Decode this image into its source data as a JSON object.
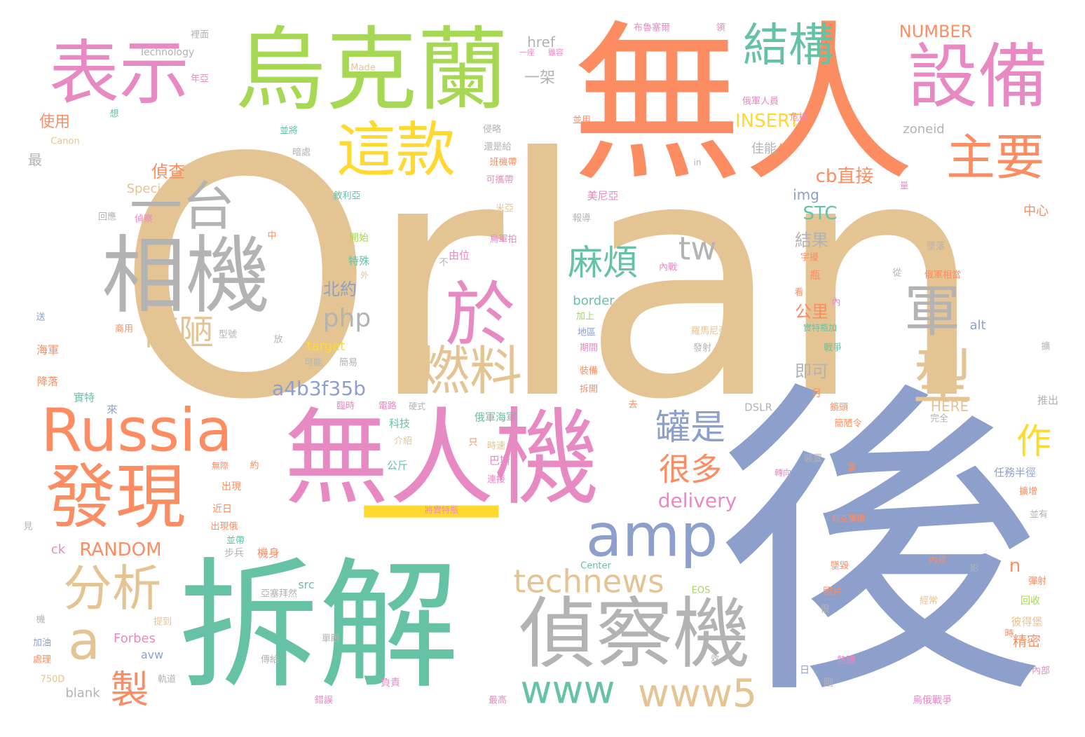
{
  "palette": {
    "tan": "#e5c494",
    "orange": "#fc8d62",
    "blue": "#8da0cb",
    "pink": "#e78ac3",
    "green": "#a6d854",
    "yellow": "#ffd92f",
    "teal": "#66c2a5",
    "grey": "#b3b3b3"
  },
  "words": {
    "w01": "Orlan",
    "w02": "無人",
    "w03": "後",
    "w04": "無人機",
    "w05": "拆解",
    "w06": "烏克蘭",
    "w07": "一",
    "w08": "相機",
    "w09": "偵察機",
    "w10": "設備",
    "w11": "表示",
    "w12": "這款",
    "w13": "發現",
    "w14": "Russia",
    "w15": "一台",
    "w16": "於",
    "w17": "amp",
    "w18": "結構",
    "w19": "主要",
    "w20": "軍",
    "w21": "型",
    "w22": "燃料",
    "w23": "分析",
    "w24": "technews",
    "w25": "www5",
    "w26": "www",
    "w27": "a",
    "w28": "簡陋",
    "w29": "麻煩",
    "w30": "罐是",
    "w31": "很多",
    "w32": "製",
    "w33": "作",
    "w34": "tw",
    "w35": "php",
    "w36": "a4b3f35b",
    "w37": "delivery",
    "w38": "RANDOM",
    "w39": "INSERT",
    "w40": "NUMBER",
    "w41": "cb直接",
    "w42": "STC",
    "w43": "結果",
    "w44": "公里",
    "w45": "即可",
    "w46": "北約",
    "w47": "偵查",
    "w48": "使用",
    "w49": "一架",
    "w50": "href",
    "w51": "zoneid",
    "w52": "佳能",
    "w53": "img",
    "w54": "Special",
    "w55": "Technology",
    "w56": "Canon",
    "w57": "Made",
    "w58": "border",
    "w59": "alt",
    "w60": "target",
    "w61": "Forbes",
    "w62": "blank",
    "w63": "avw",
    "w64": "DSLR",
    "w65": "HERE",
    "w66": "Center",
    "w67": "EOS",
    "w68": "750D",
    "w69": "src",
    "w70": "ck",
    "w71": "n",
    "w72": "年",
    "w73": "精密",
    "w74": "中心",
    "w75": "最",
    "w76": "海軍",
    "w77": "降落",
    "w78": "實特",
    "w79": "科技",
    "w80": "俄軍海軍",
    "w81": "公斤",
    "w82": "巴斯",
    "w83": "美尼亞",
    "w84": "俄軍人員",
    "w85": "危機",
    "w86": "布魯塞爾",
    "w87": "領",
    "w88": "任務半徑",
    "w89": "推出",
    "w90": "烏軍拍",
    "w91": "由位",
    "w92": "開始",
    "w93": "特殊",
    "w94": "來",
    "w95": "出現",
    "w96": "近日",
    "w97": "步兵",
    "w98": "機身",
    "w99": "內建",
    "w100": "照片",
    "w101": "彼得堡",
    "w102": "回收",
    "w103": "烏俄戰爭",
    "w104": "內部",
    "w105": "熱頭",
    "w106": "負責",
    "w107": "最高",
    "w108": "傳給",
    "w109": "軌道",
    "w110": "加油",
    "w111": "處理",
    "w112": "日",
    "w113": "剛",
    "w114": "彈射",
    "w115": "經常",
    "w116": "月",
    "w117": "瓶",
    "w118": "看",
    "w119": "內",
    "w120": "發射",
    "w121": "戰爭",
    "w122": "期間",
    "w123": "裝備",
    "w124": "拆開",
    "w125": "地區",
    "w126": "加上",
    "w127": "放",
    "w128": "可能",
    "w129": "簡易",
    "w130": "商用",
    "w131": "偵察",
    "w132": "回應",
    "w133": "敘利亞",
    "w134": "可攜帶",
    "w135": "報導",
    "w136": "還是給",
    "w137": "侵略",
    "w138": "並將",
    "w139": "並用",
    "w140": "想",
    "w141": "年亞",
    "w142": "裡面",
    "w143": "一座",
    "w144": "雖容",
    "w145": "俄軍相當",
    "w146": "宇擾",
    "w147": "墜落",
    "w148": "從",
    "w149": "羅馬尼亞",
    "w150": "內戰",
    "w151": "實特瓶加",
    "w152": "鏡頭",
    "w153": "簡陋令",
    "w154": "完全",
    "w155": "裝置",
    "w156": "轉向",
    "w157": "拿",
    "w158": "擴增",
    "w159": "並有",
    "w160": "影",
    "w161": "烏克蘭現",
    "w162": "將實特瓶",
    "w163": "時速",
    "w164": "連接",
    "w165": "只",
    "w166": "介紹",
    "w167": "電路",
    "w168": "硬式",
    "w169": "約",
    "w170": "無際",
    "w171": "見",
    "w172": "機",
    "w173": "出現俄",
    "w174": "亞塞拜然",
    "w175": "單眼",
    "w176": "提到",
    "w177": "墜毀",
    "w178": "很",
    "w179": "時",
    "w180": "效",
    "w181": "送",
    "w182": "外",
    "w183": "不",
    "w184": "中",
    "w185": "型號",
    "w186": "暗處",
    "w187": "並帶",
    "w188": "班機帶",
    "w189": "米亞",
    "w190": "去",
    "w191": "臨時",
    "w192": "錯誤",
    "w193": "擴",
    "w194": "in",
    "w195": "量"
  }
}
